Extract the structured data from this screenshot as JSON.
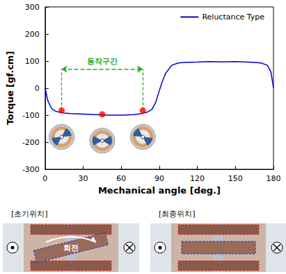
{
  "chart_data": {
    "type": "line",
    "xlabel": "Mechanical angle [deg.]",
    "ylabel": "Torque [gf.cm]",
    "x": [
      0,
      2,
      5,
      8,
      10,
      15,
      20,
      30,
      40,
      50,
      60,
      70,
      75,
      80,
      84,
      87,
      90,
      92,
      95,
      100,
      105,
      110,
      120,
      130,
      140,
      150,
      160,
      165,
      170,
      175,
      178,
      180
    ],
    "series": [
      {
        "name": "Reluctance Type",
        "color": "#0000cc",
        "values": [
          0,
          -45,
          -75,
          -85,
          -88,
          -92,
          -94,
          -96,
          -98,
          -100,
          -100,
          -98,
          -95,
          -90,
          -80,
          -55,
          -10,
          20,
          55,
          85,
          93,
          95,
          96,
          98,
          97,
          98,
          96,
          95,
          93,
          85,
          60,
          0
        ]
      }
    ],
    "xlim": [
      0,
      180
    ],
    "xticks": [
      0,
      30,
      60,
      90,
      120,
      150,
      180
    ],
    "ylim": [
      -300,
      300
    ],
    "yticks": [
      -300,
      -200,
      -100,
      0,
      100,
      200,
      300
    ],
    "grid": false,
    "legend": "upper right",
    "annotations": [
      {
        "text": "동작구간",
        "x": [
          13,
          77
        ],
        "y": 70,
        "color": "#22aa22"
      }
    ],
    "points": {
      "x": [
        13,
        45,
        77
      ],
      "y": [
        -83,
        -97,
        -83
      ],
      "color": "#ff0000"
    }
  },
  "diagram": {
    "panels": [
      {
        "label": "[초기위치]",
        "note": "회전"
      },
      {
        "label": "[최종위치]"
      }
    ]
  }
}
